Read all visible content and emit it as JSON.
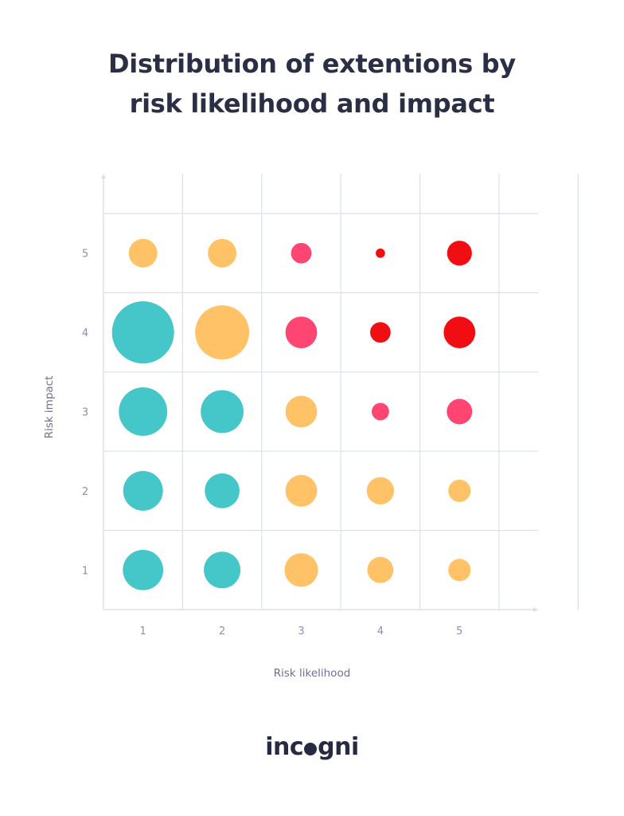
{
  "title_lines": [
    "Distribution of extentions by",
    "risk likelihood and impact"
  ],
  "brand": {
    "text_before": "inc",
    "text_after": "gni",
    "name": "incogni"
  },
  "chart_data": {
    "type": "scatter",
    "subtype": "bubble",
    "title": "Distribution of extentions by risk likelihood and impact",
    "xlabel": "Risk likelihood",
    "ylabel": "Risk impact",
    "x_ticks": [
      "1",
      "2",
      "3",
      "4",
      "5"
    ],
    "y_ticks": [
      "1",
      "2",
      "3",
      "4",
      "5"
    ],
    "xlim": [
      0.5,
      6.5
    ],
    "ylim": [
      0.5,
      6.5
    ],
    "grid": true,
    "size_note": "relative bubble size (largest = 100), no numeric labels shown",
    "colors": {
      "low": "#45c6c9",
      "medium": "#ffc266",
      "high": "#ff4672",
      "critical": "#f00e12"
    },
    "points": [
      {
        "x": 1,
        "y": 5,
        "size": 46,
        "level": "medium"
      },
      {
        "x": 2,
        "y": 5,
        "size": 46,
        "level": "medium"
      },
      {
        "x": 3,
        "y": 5,
        "size": 33,
        "level": "high"
      },
      {
        "x": 4,
        "y": 5,
        "size": 15,
        "level": "critical"
      },
      {
        "x": 5,
        "y": 5,
        "size": 40,
        "level": "critical"
      },
      {
        "x": 1,
        "y": 4,
        "size": 100,
        "level": "low"
      },
      {
        "x": 2,
        "y": 4,
        "size": 87,
        "level": "medium"
      },
      {
        "x": 3,
        "y": 4,
        "size": 51,
        "level": "high"
      },
      {
        "x": 4,
        "y": 4,
        "size": 33,
        "level": "critical"
      },
      {
        "x": 5,
        "y": 4,
        "size": 51,
        "level": "critical"
      },
      {
        "x": 1,
        "y": 3,
        "size": 78,
        "level": "low"
      },
      {
        "x": 2,
        "y": 3,
        "size": 69,
        "level": "low"
      },
      {
        "x": 3,
        "y": 3,
        "size": 51,
        "level": "medium"
      },
      {
        "x": 4,
        "y": 3,
        "size": 28,
        "level": "high"
      },
      {
        "x": 5,
        "y": 3,
        "size": 41,
        "level": "high"
      },
      {
        "x": 1,
        "y": 2,
        "size": 64,
        "level": "low"
      },
      {
        "x": 2,
        "y": 2,
        "size": 56,
        "level": "low"
      },
      {
        "x": 3,
        "y": 2,
        "size": 51,
        "level": "medium"
      },
      {
        "x": 4,
        "y": 2,
        "size": 44,
        "level": "medium"
      },
      {
        "x": 5,
        "y": 2,
        "size": 36,
        "level": "medium"
      },
      {
        "x": 1,
        "y": 1,
        "size": 65,
        "level": "low"
      },
      {
        "x": 2,
        "y": 1,
        "size": 59,
        "level": "low"
      },
      {
        "x": 3,
        "y": 1,
        "size": 54,
        "level": "medium"
      },
      {
        "x": 4,
        "y": 1,
        "size": 42,
        "level": "medium"
      },
      {
        "x": 5,
        "y": 1,
        "size": 36,
        "level": "medium"
      }
    ]
  }
}
